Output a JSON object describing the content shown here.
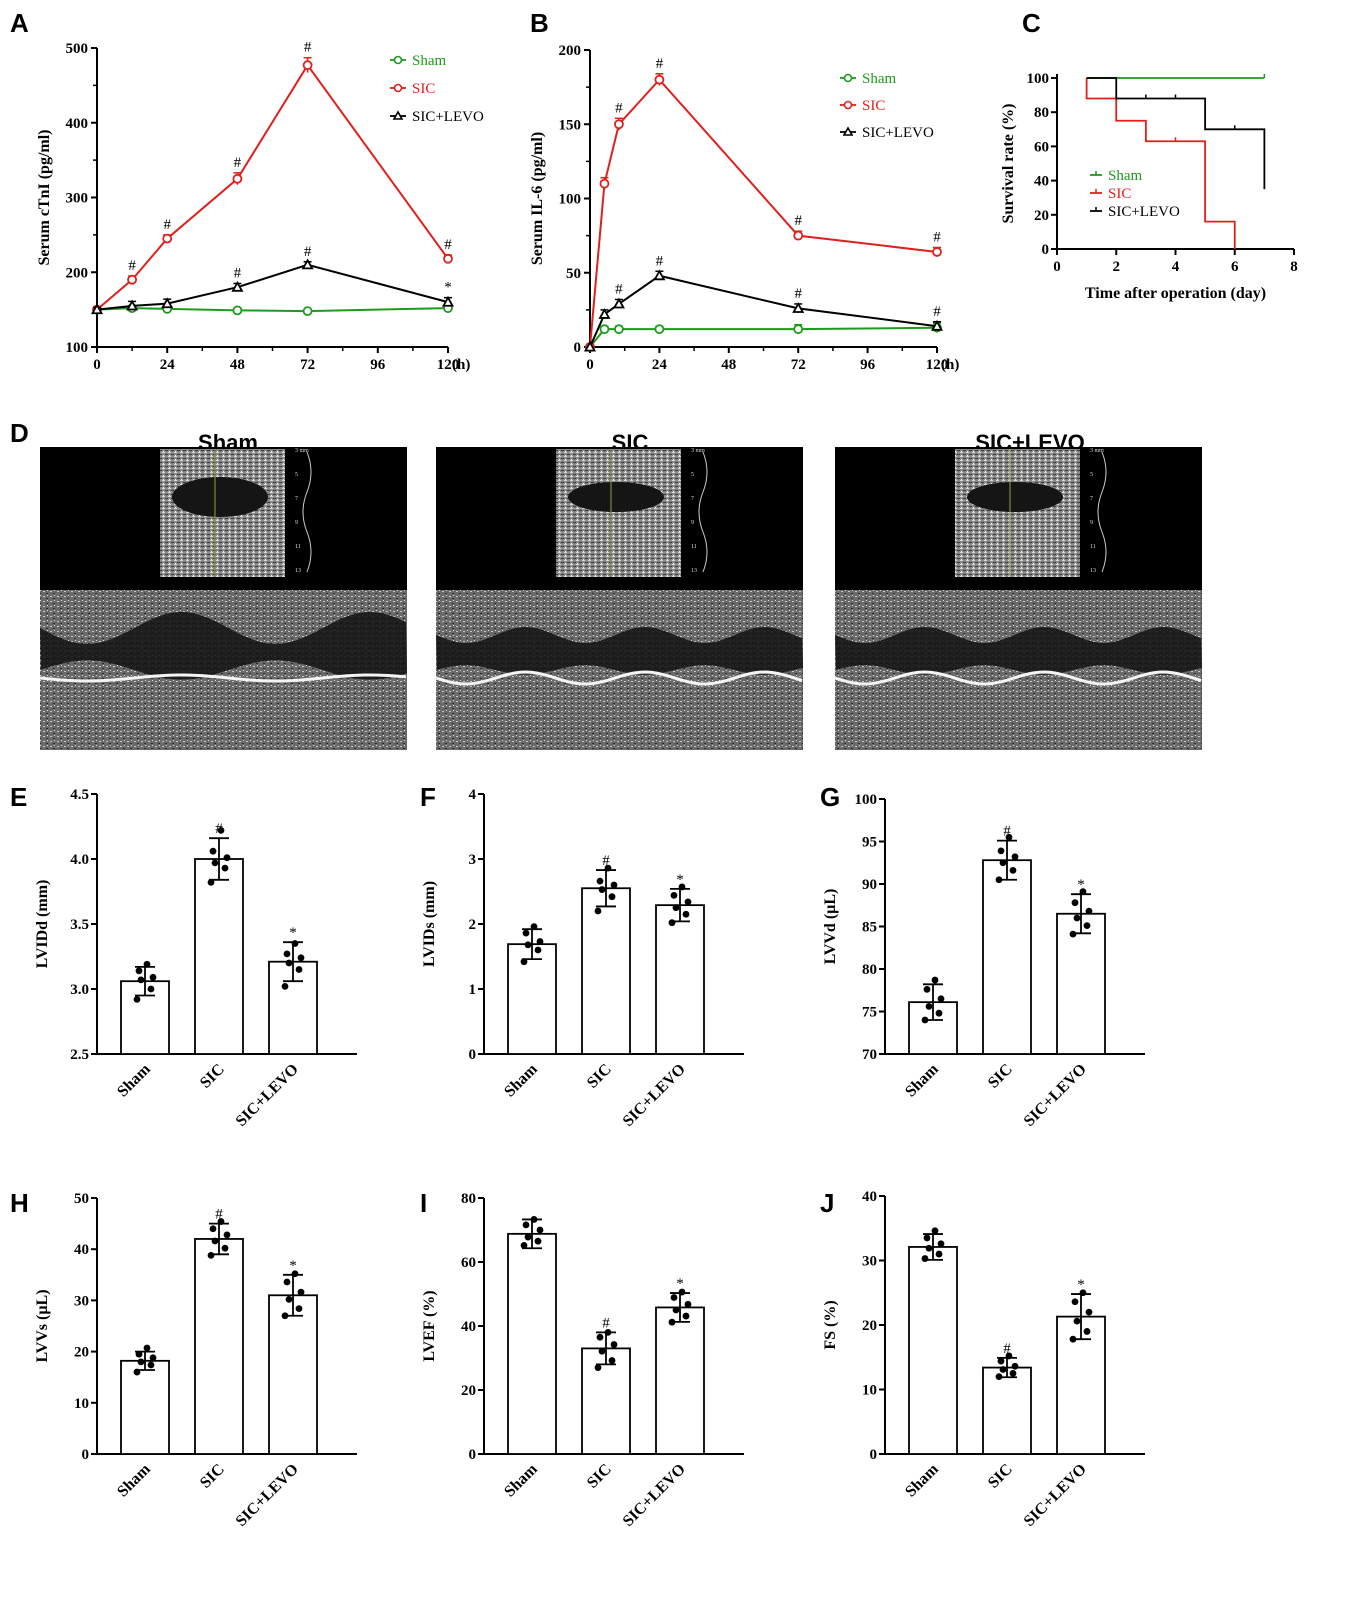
{
  "figure": {
    "panel_letters": [
      "A",
      "B",
      "C",
      "D",
      "E",
      "F",
      "G",
      "H",
      "I",
      "J"
    ],
    "echo_titles": [
      "Sham",
      "SIC",
      "SIC+LEVO"
    ],
    "echo_scale_labels": [
      "3 mm",
      "5",
      "7",
      "9",
      "11",
      "13"
    ]
  },
  "chart_data": [
    {
      "panel": "A",
      "type": "line",
      "title": "",
      "xlabel": "(h)",
      "ylabel": "Serum cTnI (pg/ml)",
      "xticks": [
        "0",
        "24",
        "48",
        "72",
        "96",
        "120"
      ],
      "yticks": [
        "100",
        "200",
        "300",
        "400",
        "500"
      ],
      "xlim": [
        0,
        120
      ],
      "ylim": [
        100,
        500
      ],
      "series": [
        {
          "name": "Sham",
          "color": "#1e9a1e",
          "marker": "circle",
          "x": [
            0,
            12,
            24,
            48,
            72,
            120
          ],
          "y": [
            150,
            152,
            151,
            149,
            148,
            152
          ],
          "err": [
            3,
            3,
            3,
            2,
            2,
            3
          ],
          "marks": [
            "",
            "",
            "",
            "",
            "",
            ""
          ]
        },
        {
          "name": "SIC",
          "color": "#e0201c",
          "marker": "circle",
          "x": [
            0,
            12,
            24,
            48,
            72,
            120
          ],
          "y": [
            150,
            190,
            245,
            325,
            477,
            218
          ],
          "err": [
            3,
            5,
            5,
            8,
            10,
            5
          ],
          "marks": [
            "",
            "#",
            "#",
            "#",
            "#",
            "#"
          ]
        },
        {
          "name": "SIC+LEVO",
          "color": "#000000",
          "marker": "triangle",
          "x": [
            0,
            12,
            24,
            48,
            72,
            120
          ],
          "y": [
            150,
            155,
            158,
            180,
            210,
            160
          ],
          "err": [
            3,
            6,
            6,
            5,
            4,
            6
          ],
          "marks": [
            "",
            "",
            "",
            "#",
            "#",
            "*"
          ]
        }
      ]
    },
    {
      "panel": "B",
      "type": "line",
      "title": "",
      "xlabel": "(h)",
      "ylabel": "Serum IL-6 (pg/ml)",
      "xticks": [
        "0",
        "24",
        "48",
        "72",
        "96",
        "120"
      ],
      "yticks": [
        "0",
        "50",
        "100",
        "150",
        "200"
      ],
      "xlim": [
        0,
        120
      ],
      "ylim": [
        0,
        200
      ],
      "series": [
        {
          "name": "Sham",
          "color": "#1e9a1e",
          "marker": "circle",
          "x": [
            0,
            5,
            10,
            24,
            72,
            120
          ],
          "y": [
            0,
            12,
            12,
            12,
            12,
            13
          ],
          "err": [
            0,
            2,
            2,
            2,
            3,
            3
          ],
          "marks": [
            "",
            "",
            "",
            "",
            "",
            ""
          ]
        },
        {
          "name": "SIC",
          "color": "#e0201c",
          "marker": "circle",
          "x": [
            0,
            5,
            10,
            24,
            72,
            120
          ],
          "y": [
            0,
            110,
            150,
            180,
            75,
            64
          ],
          "err": [
            0,
            4,
            4,
            4,
            3,
            3
          ],
          "marks": [
            "",
            "",
            "#",
            "#",
            "#",
            "#"
          ]
        },
        {
          "name": "SIC+LEVO",
          "color": "#000000",
          "marker": "triangle",
          "x": [
            0,
            5,
            10,
            24,
            72,
            120
          ],
          "y": [
            0,
            22,
            29,
            48,
            26,
            14
          ],
          "err": [
            0,
            3,
            3,
            3,
            3,
            3
          ],
          "marks": [
            "",
            "",
            "#",
            "#",
            "#",
            "#"
          ]
        }
      ]
    },
    {
      "panel": "C",
      "type": "line",
      "title": "",
      "xlabel": "Time after operation (day)",
      "ylabel": "Survival rate (%)",
      "xticks": [
        "0",
        "2",
        "4",
        "6",
        "8"
      ],
      "yticks": [
        "0",
        "20",
        "40",
        "60",
        "80",
        "100"
      ],
      "xlim": [
        0,
        8
      ],
      "ylim": [
        0,
        100
      ],
      "series": [
        {
          "name": "Sham",
          "color": "#1e9a1e",
          "steps": [
            [
              1,
              100
            ],
            [
              7,
              100
            ]
          ],
          "censor": [
            7
          ]
        },
        {
          "name": "SIC",
          "color": "#e0201c",
          "steps": [
            [
              1,
              88
            ],
            [
              2,
              75
            ],
            [
              3,
              63
            ],
            [
              5,
              16
            ],
            [
              6,
              0
            ]
          ],
          "censor": [
            4
          ]
        },
        {
          "name": "SIC+LEVO",
          "color": "#000000",
          "steps": [
            [
              1,
              100
            ],
            [
              2,
              88
            ],
            [
              5,
              70
            ],
            [
              7,
              35
            ]
          ],
          "censor": [
            3,
            4,
            6
          ]
        }
      ]
    },
    {
      "panel": "E",
      "type": "bar",
      "ylabel": "LVIDd (mm)",
      "categories": [
        "Sham",
        "SIC",
        "SIC+LEVO"
      ],
      "yticks": [
        "2.5",
        "3.0",
        "3.5",
        "4.0",
        "4.5"
      ],
      "ylim": [
        2.5,
        4.5
      ],
      "values": [
        3.06,
        4.0,
        3.21
      ],
      "err": [
        0.11,
        0.16,
        0.15
      ],
      "marks": [
        "",
        "#",
        "*"
      ],
      "points": [
        [
          2.92,
          3.0,
          3.07,
          3.09,
          3.14,
          3.19
        ],
        [
          3.82,
          3.93,
          3.97,
          4.01,
          4.06,
          4.22
        ],
        [
          3.02,
          3.15,
          3.2,
          3.24,
          3.27,
          3.35
        ]
      ]
    },
    {
      "panel": "F",
      "type": "bar",
      "ylabel": "LVIDs (mm)",
      "categories": [
        "Sham",
        "SIC",
        "SIC+LEVO"
      ],
      "yticks": [
        "0",
        "1",
        "2",
        "3",
        "4"
      ],
      "ylim": [
        0,
        4
      ],
      "values": [
        1.69,
        2.55,
        2.29
      ],
      "err": [
        0.23,
        0.28,
        0.25
      ],
      "marks": [
        "",
        "#",
        "*"
      ],
      "points": [
        [
          1.42,
          1.6,
          1.68,
          1.73,
          1.86,
          1.96
        ],
        [
          2.2,
          2.42,
          2.53,
          2.6,
          2.66,
          2.86
        ],
        [
          2.02,
          2.15,
          2.25,
          2.34,
          2.44,
          2.57
        ]
      ]
    },
    {
      "panel": "G",
      "type": "bar",
      "ylabel": "LVVd (µL)",
      "categories": [
        "Sham",
        "SIC",
        "SIC+LEVO"
      ],
      "yticks": [
        "70",
        "75",
        "80",
        "85",
        "90",
        "95",
        "100"
      ],
      "ylim": [
        70,
        100
      ],
      "values": [
        76.1,
        92.8,
        86.5
      ],
      "err": [
        2.1,
        2.3,
        2.3
      ],
      "marks": [
        "",
        "#",
        "*"
      ],
      "points": [
        [
          74.0,
          74.8,
          75.6,
          76.5,
          77.6,
          78.7
        ],
        [
          90.5,
          91.6,
          92.5,
          93.2,
          93.9,
          95.5
        ],
        [
          84.1,
          85.1,
          86.0,
          86.8,
          87.8,
          89.1
        ]
      ]
    },
    {
      "panel": "H",
      "type": "bar",
      "ylabel": "LVVs (µL)",
      "categories": [
        "Sham",
        "SIC",
        "SIC+LEVO"
      ],
      "yticks": [
        "0",
        "10",
        "20",
        "30",
        "40",
        "50"
      ],
      "ylim": [
        0,
        50
      ],
      "values": [
        18.2,
        42.0,
        31.0
      ],
      "err": [
        1.8,
        3.0,
        4.0
      ],
      "marks": [
        "",
        "#",
        "*"
      ],
      "points": [
        [
          16.0,
          17.4,
          18.0,
          18.8,
          19.5,
          20.7
        ],
        [
          38.8,
          40.2,
          41.6,
          42.8,
          44.0,
          45.4
        ],
        [
          27.0,
          28.4,
          30.2,
          31.6,
          33.6,
          35.2
        ]
      ]
    },
    {
      "panel": "I",
      "type": "bar",
      "ylabel": "LVEF (%)",
      "categories": [
        "Sham",
        "SIC",
        "SIC+LEVO"
      ],
      "yticks": [
        "0",
        "20",
        "40",
        "60",
        "80"
      ],
      "ylim": [
        0,
        80
      ],
      "values": [
        68.8,
        33.0,
        45.8
      ],
      "err": [
        4.5,
        5.0,
        4.5
      ],
      "marks": [
        "",
        "#",
        "*"
      ],
      "points": [
        [
          65.2,
          66.5,
          67.8,
          70.0,
          71.6,
          73.3
        ],
        [
          27.0,
          29.2,
          32.1,
          34.2,
          36.5,
          38.0
        ],
        [
          41.2,
          43.1,
          45.0,
          46.8,
          48.9,
          50.6
        ]
      ]
    },
    {
      "panel": "J",
      "type": "bar",
      "ylabel": "FS (%)",
      "categories": [
        "Sham",
        "SIC",
        "SIC+LEVO"
      ],
      "yticks": [
        "0",
        "10",
        "20",
        "30",
        "40"
      ],
      "ylim": [
        0,
        40
      ],
      "values": [
        32.1,
        13.4,
        21.3
      ],
      "err": [
        2.0,
        1.5,
        3.5
      ],
      "marks": [
        "",
        "#",
        "*"
      ],
      "points": [
        [
          30.3,
          31.0,
          31.9,
          32.6,
          33.5,
          34.6
        ],
        [
          12.0,
          12.5,
          13.1,
          13.6,
          14.4,
          15.2
        ],
        [
          17.8,
          19.0,
          20.6,
          22.0,
          23.6,
          25.0
        ]
      ]
    }
  ]
}
